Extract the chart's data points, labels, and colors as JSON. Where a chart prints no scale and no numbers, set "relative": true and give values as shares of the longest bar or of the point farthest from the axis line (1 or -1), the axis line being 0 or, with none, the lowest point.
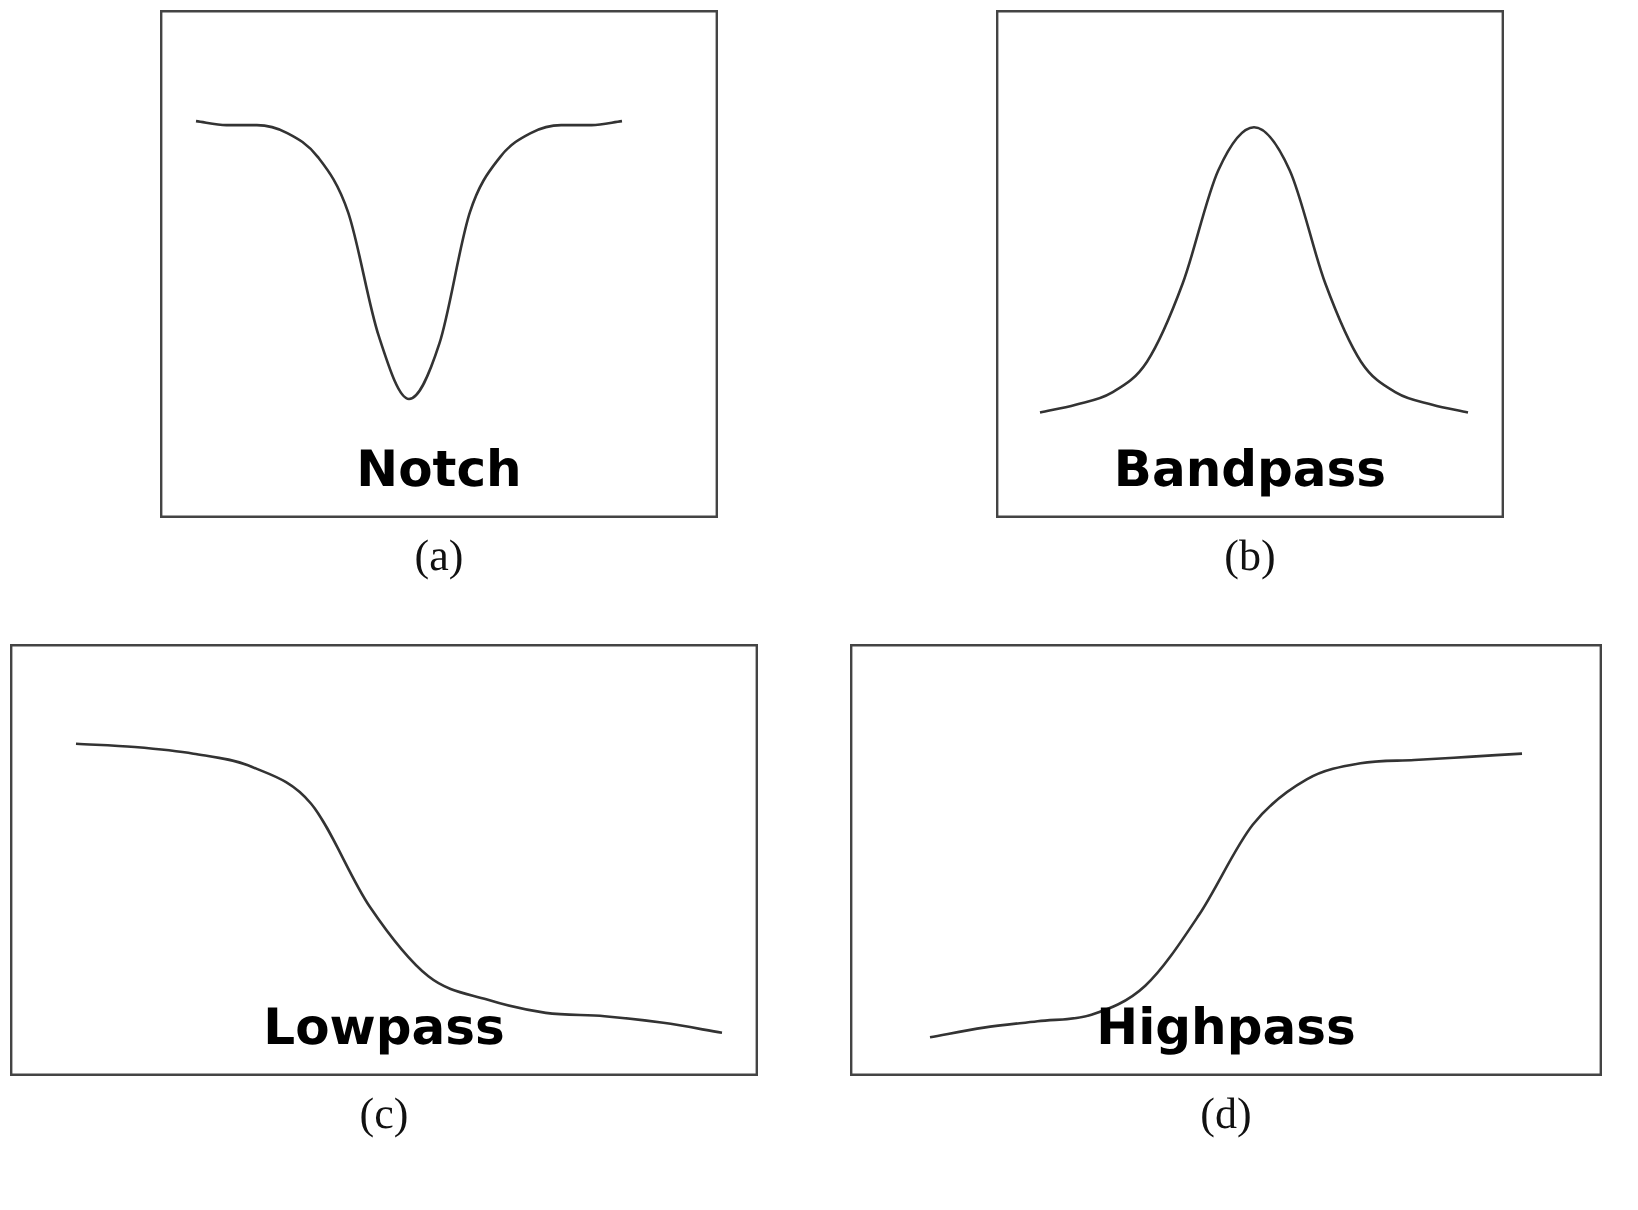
{
  "chart_data": [
    {
      "type": "line",
      "relative": true,
      "xlabel": "(a)",
      "annotations": [
        "Notch"
      ],
      "color": "#333333",
      "marker": "none",
      "legend": false,
      "categories": [
        null,
        null,
        null,
        null,
        null,
        null,
        null,
        null,
        null,
        null,
        null,
        null,
        null,
        null,
        null
      ],
      "values": [
        1,
        0.99,
        0.99,
        0.97,
        0.91,
        0.77,
        0.46,
        0.3,
        0.44,
        0.77,
        0.91,
        0.97,
        0.99,
        0.99,
        1
      ]
    },
    {
      "type": "line",
      "relative": true,
      "xlabel": "(b)",
      "annotations": [
        "Bandpass"
      ],
      "color": "#333333",
      "marker": "none",
      "legend": false,
      "categories": [
        null,
        null,
        null,
        null,
        null,
        null,
        null,
        null,
        null,
        null,
        null,
        null,
        null
      ],
      "values": [
        0.27,
        0.29,
        0.32,
        0.4,
        0.6,
        0.89,
        1,
        0.89,
        0.6,
        0.4,
        0.32,
        0.29,
        0.27
      ]
    },
    {
      "type": "line",
      "relative": true,
      "xlabel": "(c)",
      "annotations": [
        "Lowpass"
      ],
      "color": "#333333",
      "marker": "none",
      "legend": false,
      "categories": [
        null,
        null,
        null,
        null,
        null,
        null,
        null,
        null,
        null,
        null,
        null,
        null
      ],
      "values": [
        1,
        0.99,
        0.97,
        0.93,
        0.82,
        0.51,
        0.3,
        0.23,
        0.19,
        0.18,
        0.16,
        0.13
      ]
    },
    {
      "type": "line",
      "relative": true,
      "xlabel": "(d)",
      "annotations": [
        "Highpass"
      ],
      "color": "#333333",
      "marker": "none",
      "legend": false,
      "categories": [
        null,
        null,
        null,
        null,
        null,
        null,
        null,
        null,
        null,
        null,
        null,
        null
      ],
      "values": [
        0.12,
        0.15,
        0.17,
        0.19,
        0.28,
        0.5,
        0.78,
        0.92,
        0.97,
        0.98,
        0.99,
        1
      ]
    }
  ]
}
